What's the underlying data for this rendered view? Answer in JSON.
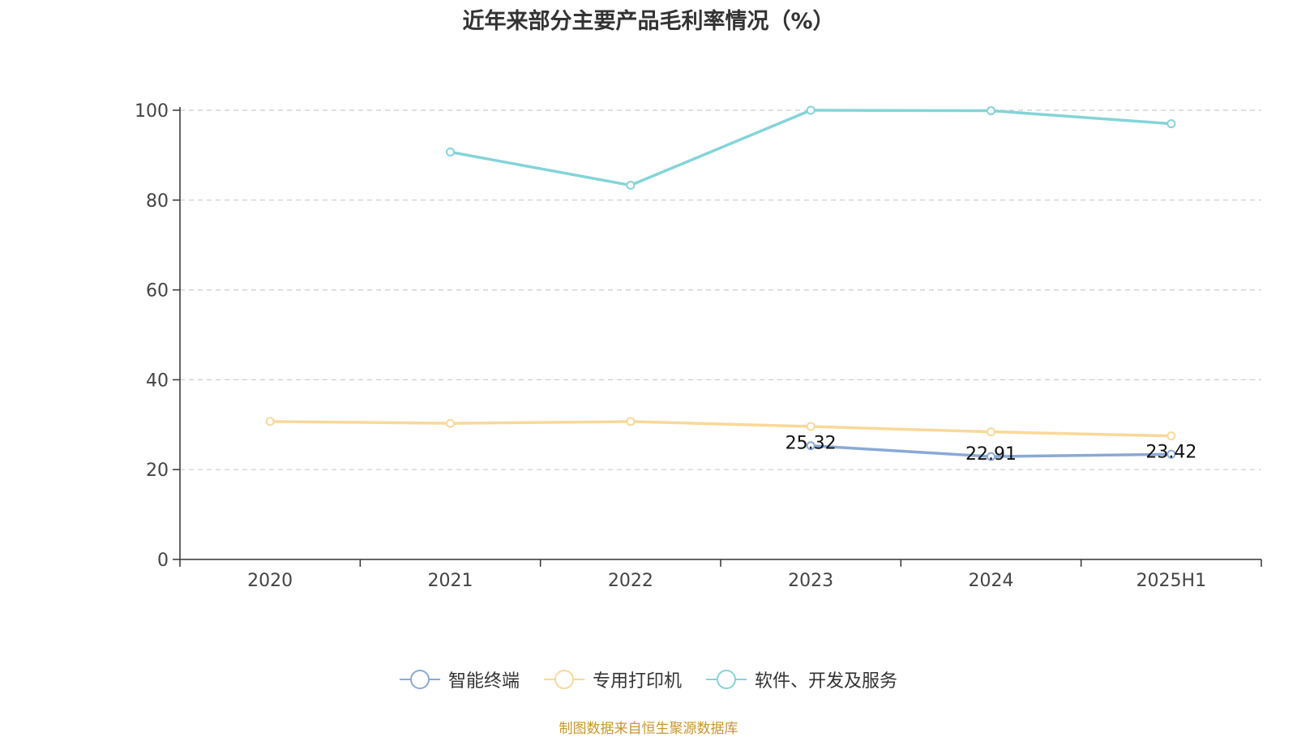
{
  "title": "近年来部分主要产品毛利率情况（%）",
  "source_note": "制图数据来自恒生聚源数据库",
  "chart_data": {
    "type": "line",
    "categories": [
      "2020",
      "2021",
      "2022",
      "2023",
      "2024",
      "2025H1"
    ],
    "ylim": [
      0,
      100
    ],
    "yticks": [
      0,
      20,
      40,
      60,
      80,
      100
    ],
    "grid": true,
    "legend_position": "bottom",
    "series": [
      {
        "name": "智能终端",
        "color": "#8aa9d6",
        "values": [
          null,
          null,
          null,
          25.32,
          22.91,
          23.42
        ],
        "labels": [
          null,
          null,
          null,
          "25.32",
          "22.91",
          "23.42"
        ]
      },
      {
        "name": "专用打印机",
        "color": "#f9d898",
        "values": [
          30.7,
          30.3,
          30.7,
          29.6,
          28.4,
          27.5
        ]
      },
      {
        "name": "软件、开发及服务",
        "color": "#84d4d8",
        "values": [
          null,
          90.7,
          83.3,
          100.0,
          99.9,
          97.0
        ]
      }
    ]
  }
}
